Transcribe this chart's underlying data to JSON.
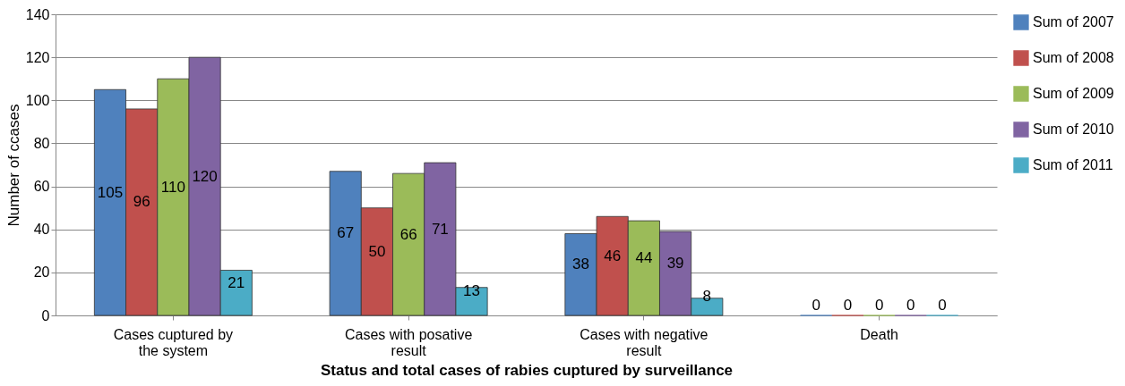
{
  "chart_data": {
    "type": "bar",
    "xlabel": "Status and total cases of rabies cuptured by surveillance",
    "ylabel": "Number of ccases",
    "categories": [
      "Cases cuptured by the system",
      "Cases with posative result",
      "Cases with negative result",
      "Death"
    ],
    "series": [
      {
        "name": "Sum of 2007",
        "color": "#4f81bd",
        "values": [
          105,
          67,
          38,
          0
        ]
      },
      {
        "name": "Sum of 2008",
        "color": "#c0504d",
        "values": [
          96,
          50,
          46,
          0
        ]
      },
      {
        "name": "Sum of 2009",
        "color": "#9bbb59",
        "values": [
          110,
          66,
          44,
          0
        ]
      },
      {
        "name": "Sum of 2010",
        "color": "#8064a2",
        "values": [
          120,
          71,
          39,
          0
        ]
      },
      {
        "name": "Sum of 2011",
        "color": "#4bacc6",
        "values": [
          21,
          13,
          8,
          0
        ]
      }
    ],
    "ylim": [
      0,
      140
    ],
    "yticks": [
      0,
      20,
      40,
      60,
      80,
      100,
      120,
      140
    ],
    "grid": "y",
    "legend": "right",
    "data_labels": true
  }
}
